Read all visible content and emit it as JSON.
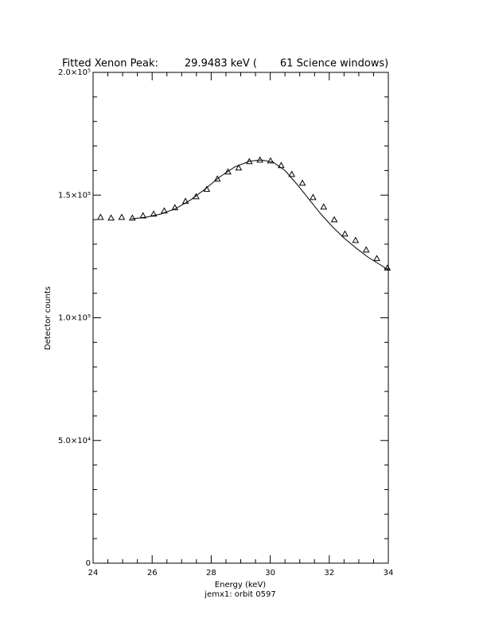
{
  "chart_data": {
    "type": "line",
    "title": "Fitted Xenon Peak:        29.9483 keV (       61 Science windows)",
    "x_label": "Energy (keV)",
    "subtitle": "jemx1: orbit 0597",
    "y_label": "Detector counts",
    "xlim": [
      24,
      34
    ],
    "xticks": [
      24,
      26,
      28,
      30,
      32,
      34
    ],
    "ylim": [
      0,
      200000
    ],
    "yticks": [
      0,
      {
        "value": 50000,
        "label": "5.0×10⁴"
      },
      {
        "value": 100000,
        "label": "1.0×10⁵"
      },
      {
        "value": 150000,
        "label": "1.5×10⁵"
      },
      {
        "value": 200000,
        "label": "2.0×10⁵"
      }
    ],
    "series": [
      {
        "style": "markers",
        "color": "#000000",
        "x": [
          24.25,
          24.61,
          24.97,
          25.33,
          25.69,
          26.05,
          26.41,
          26.77,
          27.13,
          27.49,
          27.85,
          28.21,
          28.57,
          28.93,
          29.29,
          29.65,
          30.01,
          30.37,
          30.73,
          31.09,
          31.45,
          31.81,
          32.17,
          32.53,
          32.89,
          33.25,
          33.61,
          33.97
        ],
        "values": [
          141000,
          140700,
          141000,
          140700,
          141600,
          142300,
          143600,
          144900,
          147500,
          149400,
          152400,
          156600,
          159500,
          161100,
          163700,
          164300,
          164000,
          162100,
          158500,
          154900,
          149100,
          145200,
          140000,
          134200,
          131600,
          127700,
          124200,
          120300
        ]
      },
      {
        "style": "line",
        "color": "#000000",
        "x": [
          25.3,
          25.8,
          26.3,
          26.8,
          27.3,
          27.8,
          28.3,
          28.8,
          29.3,
          29.7,
          30.1,
          30.5,
          30.9,
          31.3,
          31.7,
          32.1,
          32.5,
          32.9,
          33.3,
          33.7,
          34
        ],
        "values": [
          140300,
          141000,
          142300,
          144500,
          148000,
          152500,
          157500,
          161500,
          163800,
          164300,
          163400,
          160000,
          154500,
          148500,
          142500,
          137200,
          132500,
          128500,
          124800,
          121800,
          119500
        ]
      }
    ]
  }
}
